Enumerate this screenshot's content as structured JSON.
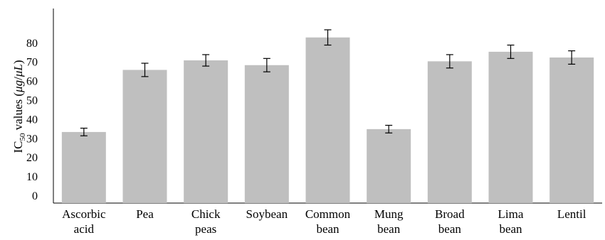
{
  "chart_data": {
    "type": "bar",
    "categories": [
      [
        "Ascorbic",
        "acid"
      ],
      [
        "Pea"
      ],
      [
        "Chick",
        "peas"
      ],
      [
        "Soybean"
      ],
      [
        "Common",
        "bean"
      ],
      [
        "Mung",
        "bean"
      ],
      [
        "Broad",
        "bean"
      ],
      [
        "Lima",
        "bean"
      ],
      [
        "Lentil"
      ]
    ],
    "values": [
      33.5,
      66,
      71,
      68.5,
      83,
      35,
      70.5,
      75.5,
      72.5
    ],
    "errors": [
      2,
      3.5,
      3,
      3.5,
      4,
      2,
      3.5,
      3.5,
      3.5
    ],
    "ylabel": {
      "main": "IC",
      "sub": "50",
      "rest": " values (",
      "mu1": "μg",
      "slash": "/",
      "mu2": "μL",
      "close": ")"
    },
    "yticks": [
      0,
      10,
      20,
      30,
      40,
      50,
      60,
      70,
      80
    ],
    "ylim": [
      0,
      95
    ],
    "bar_color": "#bfbfbf",
    "grid": false
  }
}
